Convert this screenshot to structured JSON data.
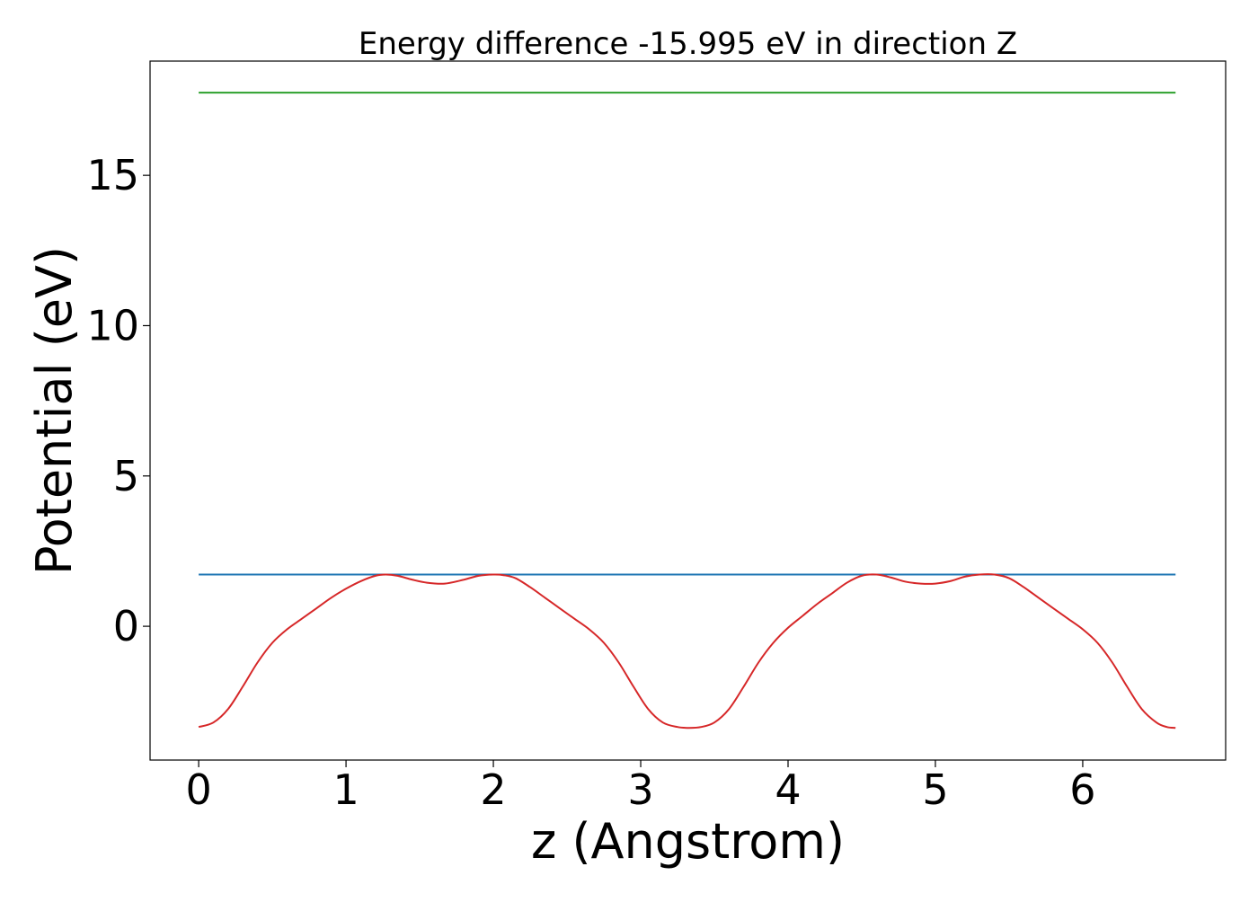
{
  "chart_data": {
    "type": "line",
    "title": "Energy difference -15.995 eV in direction Z",
    "xlabel": "z (Angstrom)",
    "ylabel": "Potential (eV)",
    "xlim": [
      -0.33,
      6.97
    ],
    "ylim": [
      -4.45,
      18.8
    ],
    "xticks": [
      0,
      1,
      2,
      3,
      4,
      5,
      6
    ],
    "yticks": [
      0,
      5,
      10,
      15
    ],
    "grid": false,
    "legend": "none",
    "series": [
      {
        "color": "#d62728",
        "x": [
          0.0,
          0.1,
          0.2,
          0.3,
          0.4,
          0.5,
          0.6,
          0.7,
          0.8,
          0.9,
          1.0,
          1.1,
          1.2,
          1.27,
          1.35,
          1.45,
          1.55,
          1.67,
          1.8,
          1.9,
          2.0,
          2.07,
          2.15,
          2.25,
          2.35,
          2.45,
          2.55,
          2.65,
          2.75,
          2.85,
          2.95,
          3.05,
          3.15,
          3.25,
          3.33,
          3.41,
          3.5,
          3.6,
          3.7,
          3.8,
          3.9,
          4.0,
          4.1,
          4.2,
          4.3,
          4.4,
          4.5,
          4.6,
          4.7,
          4.8,
          4.9,
          5.0,
          5.1,
          5.2,
          5.3,
          5.4,
          5.5,
          5.6,
          5.7,
          5.8,
          5.9,
          6.0,
          6.1,
          6.2,
          6.3,
          6.4,
          6.5,
          6.57,
          6.63
        ],
        "y": [
          -3.35,
          -3.2,
          -2.75,
          -2.0,
          -1.2,
          -0.55,
          -0.1,
          0.25,
          0.6,
          0.95,
          1.25,
          1.5,
          1.68,
          1.72,
          1.68,
          1.55,
          1.45,
          1.42,
          1.55,
          1.68,
          1.72,
          1.7,
          1.6,
          1.3,
          0.95,
          0.6,
          0.25,
          -0.1,
          -0.55,
          -1.2,
          -2.0,
          -2.75,
          -3.2,
          -3.35,
          -3.38,
          -3.35,
          -3.2,
          -2.75,
          -2.0,
          -1.2,
          -0.55,
          -0.05,
          0.35,
          0.75,
          1.1,
          1.45,
          1.68,
          1.72,
          1.62,
          1.48,
          1.42,
          1.42,
          1.5,
          1.65,
          1.72,
          1.72,
          1.6,
          1.3,
          0.95,
          0.6,
          0.25,
          -0.1,
          -0.55,
          -1.2,
          -2.0,
          -2.75,
          -3.2,
          -3.35,
          -3.38
        ]
      },
      {
        "color": "#1f77b4",
        "x": [
          0.0,
          6.63
        ],
        "y": [
          1.72,
          1.72
        ]
      },
      {
        "color": "#2ca02c",
        "x": [
          0.0,
          6.63
        ],
        "y": [
          17.75,
          17.75
        ]
      }
    ]
  }
}
